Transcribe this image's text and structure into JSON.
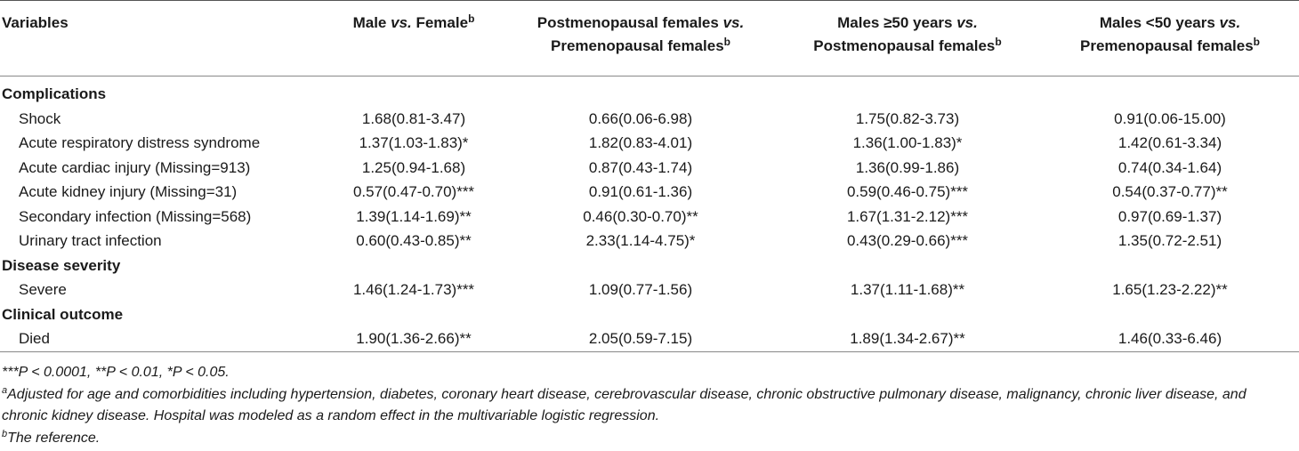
{
  "headers": {
    "variables": "Variables",
    "col1": "Male vs. Female",
    "col1_sup": "b",
    "col2_line1": "Postmenopausal females vs.",
    "col2_line2": "Premenopausal females",
    "col2_sup": "b",
    "col3_line1": "Males ≥50 years vs.",
    "col3_line2": "Postmenopausal females",
    "col3_sup": "b",
    "col4_line1": "Males <50 years vs.",
    "col4_line2": "Premenopausal females",
    "col4_sup": "b"
  },
  "sections": {
    "complications": "Complications",
    "severity": "Disease severity",
    "outcome": "Clinical outcome"
  },
  "rows": [
    {
      "label": "Shock",
      "c1": "1.68(0.81-3.47)",
      "c2": "0.66(0.06-6.98)",
      "c3": "1.75(0.82-3.73)",
      "c4": "0.91(0.06-15.00)"
    },
    {
      "label": "Acute respiratory distress syndrome",
      "c1": "1.37(1.03-1.83)*",
      "c2": "1.82(0.83-4.01)",
      "c3": "1.36(1.00-1.83)*",
      "c4": "1.42(0.61-3.34)"
    },
    {
      "label": "Acute cardiac injury (Missing=913)",
      "c1": "1.25(0.94-1.68)",
      "c2": "0.87(0.43-1.74)",
      "c3": "1.36(0.99-1.86)",
      "c4": "0.74(0.34-1.64)"
    },
    {
      "label": "Acute kidney injury (Missing=31)",
      "c1": "0.57(0.47-0.70)***",
      "c2": "0.91(0.61-1.36)",
      "c3": "0.59(0.46-0.75)***",
      "c4": "0.54(0.37-0.77)**"
    },
    {
      "label": "Secondary infection (Missing=568)",
      "c1": "1.39(1.14-1.69)**",
      "c2": "0.46(0.30-0.70)**",
      "c3": "1.67(1.31-2.12)***",
      "c4": "0.97(0.69-1.37)"
    },
    {
      "label": "Urinary tract infection",
      "c1": "0.60(0.43-0.85)**",
      "c2": "2.33(1.14-4.75)*",
      "c3": "0.43(0.29-0.66)***",
      "c4": "1.35(0.72-2.51)"
    },
    {
      "label": "Severe",
      "c1": "1.46(1.24-1.73)***",
      "c2": "1.09(0.77-1.56)",
      "c3": "1.37(1.11-1.68)**",
      "c4": "1.65(1.23-2.22)**"
    },
    {
      "label": "Died",
      "c1": "1.90(1.36-2.66)**",
      "c2": "2.05(0.59-7.15)",
      "c3": "1.89(1.34-2.67)**",
      "c4": "1.46(0.33-6.46)"
    }
  ],
  "notes": {
    "significance": "***P < 0.0001, **P < 0.01, *P < 0.05.",
    "a_sup": "a",
    "a_text": "Adjusted for age and comorbidities including hypertension, diabetes, coronary heart disease, cerebrovascular disease, chronic obstructive pulmonary disease, malignancy, chronic liver disease, and chronic kidney disease. Hospital was modeled as a random effect in the multivariable logistic regression.",
    "b_sup": "b",
    "b_text": "The reference."
  }
}
